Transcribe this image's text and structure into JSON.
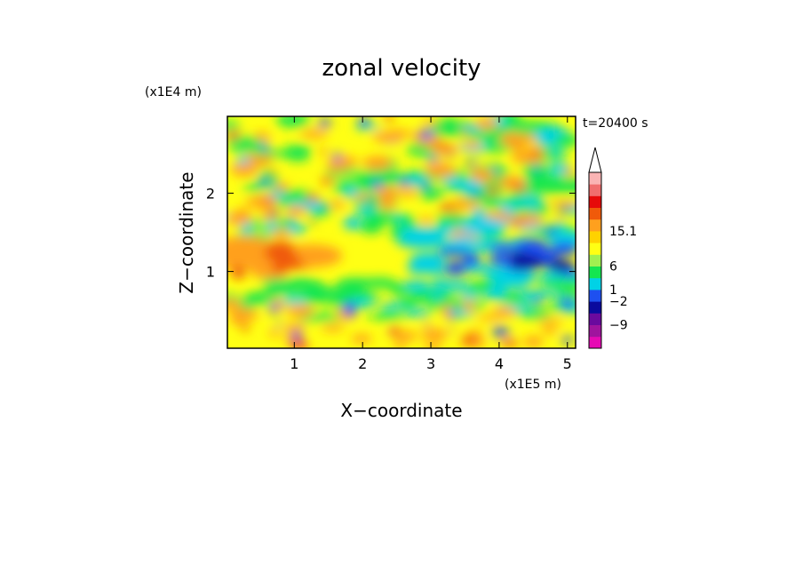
{
  "chart_data": {
    "type": "heatmap",
    "title": "zonal velocity",
    "xlabel": "X−coordinate",
    "ylabel": "Z−coordinate",
    "x_unit": "(x1E5 m)",
    "y_unit": "(x1E4 m)",
    "time_label": "t=20400 s",
    "xlim": [
      0.02,
      5.12
    ],
    "ylim": [
      0.02,
      2.98
    ],
    "x_ticks": [
      {
        "value": 1,
        "label": "1"
      },
      {
        "value": 2,
        "label": "2"
      },
      {
        "value": 3,
        "label": "3"
      },
      {
        "value": 4,
        "label": "4"
      },
      {
        "value": 5,
        "label": "5"
      }
    ],
    "y_ticks": [
      {
        "value": 1,
        "label": "1"
      },
      {
        "value": 2,
        "label": "2"
      }
    ],
    "colorbar": {
      "labels": [
        {
          "level": 10,
          "text": "15.1"
        },
        {
          "level": 7,
          "text": "6"
        },
        {
          "level": 5,
          "text": "1"
        },
        {
          "level": 4,
          "text": "−2"
        },
        {
          "level": 2,
          "text": "−9"
        }
      ],
      "colors": [
        "#e60ab4",
        "#a0149e",
        "#6a0a9e",
        "#0a0a9e",
        "#1e50f0",
        "#00d2e6",
        "#14e650",
        "#a0f050",
        "#ffff14",
        "#ffd200",
        "#ffa01e",
        "#f05a0a",
        "#e60a0a",
        "#f06e6e",
        "#fab4b4"
      ]
    },
    "field_colors": {
      "strong_negative": "#0a0a9e",
      "negative": "#1e50f0",
      "weak_negative": "#00d2e6",
      "near_zero": "#14e650",
      "weak_positive": "#ffff14",
      "positive": "#ffa01e",
      "strong_positive": "#f05a0a",
      "extreme_negative": "#a0149e"
    }
  }
}
